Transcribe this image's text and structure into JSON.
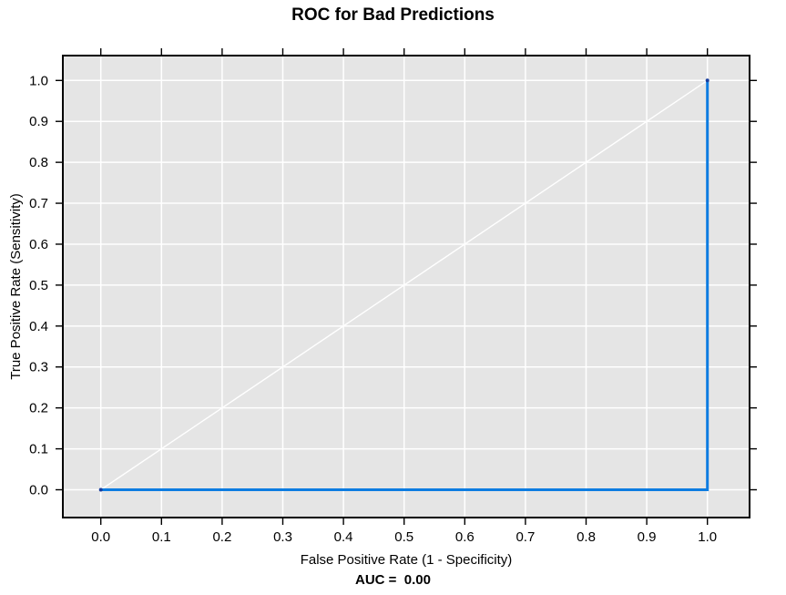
{
  "chart_data": {
    "type": "line",
    "title": "ROC for Bad Predictions",
    "xlabel": "False Positive Rate (1 - Specificity)",
    "ylabel": "True Positive Rate (Sensitivity)",
    "annotation": "AUC =  0.00",
    "auc_value": 0.0,
    "xlim": [
      0,
      1
    ],
    "ylim": [
      0,
      1
    ],
    "x_ticks": [
      0.0,
      0.1,
      0.2,
      0.3,
      0.4,
      0.5,
      0.6,
      0.7,
      0.8,
      0.9,
      1.0
    ],
    "x_tick_labels": [
      "0.0",
      "0.1",
      "0.2",
      "0.3",
      "0.4",
      "0.5",
      "0.6",
      "0.7",
      "0.8",
      "0.9",
      "1.0"
    ],
    "y_ticks": [
      0.0,
      0.1,
      0.2,
      0.3,
      0.4,
      0.5,
      0.6,
      0.7,
      0.8,
      0.9,
      1.0
    ],
    "y_tick_labels": [
      "0.0",
      "0.1",
      "0.2",
      "0.3",
      "0.4",
      "0.5",
      "0.6",
      "0.7",
      "0.8",
      "0.9",
      "1.0"
    ],
    "grid": true,
    "legend_position": "none",
    "colors": {
      "plot_background": "#e5e5e5",
      "grid_line": "#ffffff",
      "box_border": "#000000",
      "tick": "#000000",
      "roc_line": "#0d7ce1",
      "reference_line": "#ffffff",
      "endpoint": "#1a3f9e"
    },
    "series": [
      {
        "name": "ROC curve",
        "color": "#0d7ce1",
        "width": 3,
        "x": [
          0,
          1,
          1
        ],
        "y": [
          0,
          0,
          1
        ]
      },
      {
        "name": "chance diagonal",
        "color": "#ffffff",
        "width": 1.4,
        "x": [
          0,
          1
        ],
        "y": [
          0,
          1
        ]
      }
    ],
    "endpoints": {
      "color": "#1a3f9e",
      "points": [
        {
          "x": 0,
          "y": 0
        },
        {
          "x": 1,
          "y": 1
        }
      ]
    }
  }
}
